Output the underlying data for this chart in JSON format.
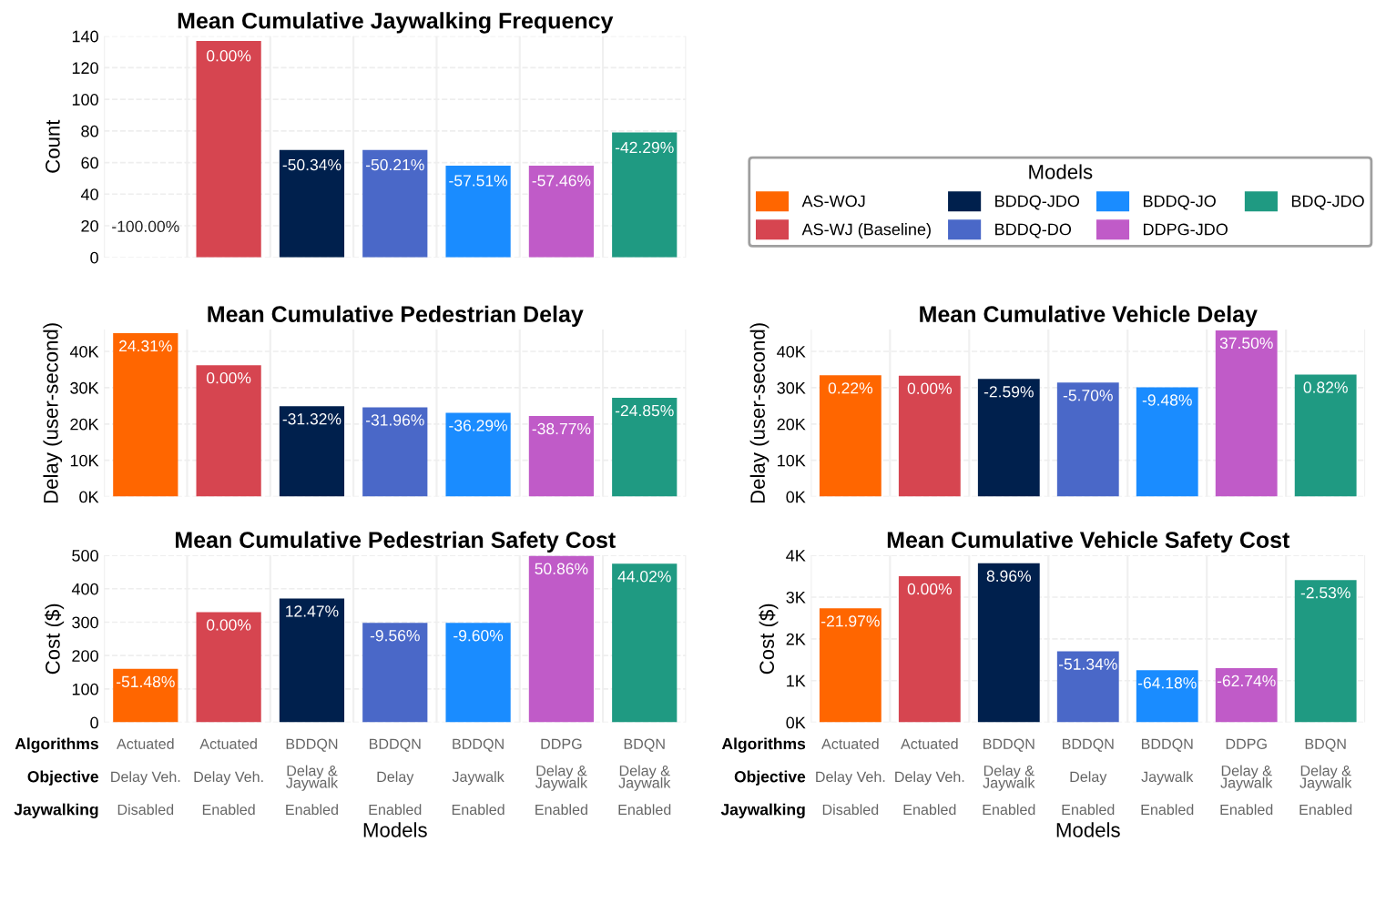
{
  "chart_data": [
    {
      "type": "bar",
      "title": "Mean Cumulative Jaywalking Frequency",
      "ylabel": "Count",
      "categories": [
        null,
        null,
        null,
        null,
        null,
        null,
        null
      ],
      "values": [
        0,
        137,
        68,
        68,
        58,
        58,
        79
      ],
      "colors": [
        "#ff6600",
        "#d64550",
        "#00204d",
        "#4a68c8",
        "#1a8cff",
        "#c05bc8",
        "#1f9a82"
      ],
      "annotations": [
        "-100.00%",
        "0.00%",
        "-50.34%",
        "-50.21%",
        "-57.51%",
        "-57.46%",
        "-42.29%"
      ],
      "ylim": [
        0,
        140
      ],
      "yticks": [
        0,
        20,
        40,
        60,
        80,
        100,
        120,
        140
      ],
      "grid": true
    },
    {
      "type": "bar",
      "title": "Mean Cumulative Pedestrian Delay",
      "ylabel": "Delay (user-second)",
      "categories": [
        null,
        null,
        null,
        null,
        null,
        null,
        null
      ],
      "values": [
        45000,
        36200,
        24900,
        24600,
        23100,
        22200,
        27200
      ],
      "colors": [
        "#ff6600",
        "#d64550",
        "#00204d",
        "#4a68c8",
        "#1a8cff",
        "#c05bc8",
        "#1f9a82"
      ],
      "annotations": [
        "24.31%",
        "0.00%",
        "-31.32%",
        "-31.96%",
        "-36.29%",
        "-38.77%",
        "-24.85%"
      ],
      "ylim": [
        0,
        46000
      ],
      "yticks": [
        {
          "value": 0,
          "label": "0K"
        },
        {
          "value": 10000,
          "label": "10K"
        },
        {
          "value": 20000,
          "label": "20K"
        },
        {
          "value": 30000,
          "label": "30K"
        },
        {
          "value": 40000,
          "label": "40K"
        }
      ],
      "grid": true
    },
    {
      "type": "bar",
      "title": "Mean Cumulative Vehicle Delay",
      "ylabel": "Delay (user-second)",
      "legend_title": "Models",
      "legend": "top",
      "categories": [
        null,
        null,
        null,
        null,
        null,
        null,
        null
      ],
      "series": [
        {
          "name": "AS-WOJ",
          "color": "#ff6600",
          "values": [
            33400,
            null,
            null,
            null,
            null,
            null,
            null
          ]
        },
        {
          "name": "AS-WJ (Baseline)",
          "color": "#d64550",
          "values": [
            null,
            33300,
            null,
            null,
            null,
            null,
            null
          ]
        },
        {
          "name": "BDDQ-JDO",
          "color": "#00204d",
          "values": [
            null,
            null,
            32400,
            null,
            null,
            null,
            null
          ]
        },
        {
          "name": "BDDQ-DO",
          "color": "#4a68c8",
          "values": [
            null,
            null,
            null,
            31400,
            null,
            null,
            null
          ]
        },
        {
          "name": "BDDQ-JO",
          "color": "#1a8cff",
          "values": [
            null,
            null,
            null,
            null,
            30100,
            null,
            null
          ]
        },
        {
          "name": "DDPG-JDO",
          "color": "#c05bc8",
          "values": [
            null,
            null,
            null,
            null,
            null,
            45800,
            null
          ]
        },
        {
          "name": "BDQ-JDO",
          "color": "#1f9a82",
          "values": [
            null,
            null,
            null,
            null,
            null,
            null,
            33600
          ]
        }
      ],
      "annotations": [
        "0.22%",
        "0.00%",
        "-2.59%",
        "-5.70%",
        "-9.48%",
        "37.50%",
        "0.82%"
      ],
      "ylim": [
        0,
        46000
      ],
      "yticks": [
        {
          "value": 0,
          "label": "0K"
        },
        {
          "value": 10000,
          "label": "10K"
        },
        {
          "value": 20000,
          "label": "20K"
        },
        {
          "value": 30000,
          "label": "30K"
        },
        {
          "value": 40000,
          "label": "40K"
        }
      ],
      "grid": true
    },
    {
      "type": "bar",
      "title": "Mean Cumulative Pedestrian Safety Cost",
      "ylabel": "Cost ($)",
      "xlabel": "Models",
      "categories": [
        null,
        null,
        null,
        null,
        null,
        null,
        null
      ],
      "values": [
        160,
        330,
        371,
        298,
        298,
        498,
        475
      ],
      "colors": [
        "#ff6600",
        "#d64550",
        "#00204d",
        "#4a68c8",
        "#1a8cff",
        "#c05bc8",
        "#1f9a82"
      ],
      "ylim": [
        0,
        500
      ],
      "yticks": [
        0,
        100,
        200,
        300,
        400,
        500
      ],
      "grid": true,
      "annotations": [
        "-51.48%",
        "0.00%",
        "12.47%",
        "-9.56%",
        "-9.60%",
        "50.86%",
        "44.02%",
        "Algorithms",
        "Objective",
        "Jaywalking",
        "Actuated",
        "Actuated",
        "BDDQN",
        "BDDQN",
        "BDDQN",
        "DDPG",
        "BDQN",
        "Delay Veh.",
        "Delay Veh.",
        "Delay &\nJaywalk",
        "Delay",
        "Jaywalk",
        "Delay &\nJaywalk",
        "Delay &\nJaywalk",
        "Disabled",
        "Enabled",
        "Enabled",
        "Enabled",
        "Enabled",
        "Enabled",
        "Enabled"
      ]
    },
    {
      "type": "bar",
      "title": "Mean Cumulative Vehicle Safety Cost",
      "ylabel": "Cost ($)",
      "xlabel": "Models",
      "categories": [
        null,
        null,
        null,
        null,
        null,
        null,
        null
      ],
      "values": [
        2730,
        3500,
        3810,
        1700,
        1250,
        1300,
        3410
      ],
      "colors": [
        "#ff6600",
        "#d64550",
        "#00204d",
        "#4a68c8",
        "#1a8cff",
        "#c05bc8",
        "#1f9a82"
      ],
      "ylim": [
        0,
        4000
      ],
      "yticks": [
        {
          "value": 0,
          "label": "0K"
        },
        {
          "value": 1000,
          "label": "1K"
        },
        {
          "value": 2000,
          "label": "2K"
        },
        {
          "value": 3000,
          "label": "3K"
        },
        {
          "value": 4000,
          "label": "4K"
        }
      ],
      "grid": true,
      "annotations": [
        "-21.97%",
        "0.00%",
        "8.96%",
        "-51.34%",
        "-64.18%",
        "-62.74%",
        "-2.53%",
        "Algorithms",
        "Objective",
        "Jaywalking",
        "Actuated",
        "Actuated",
        "BDDQN",
        "BDDQN",
        "BDDQN",
        "DDPG",
        "BDQN",
        "Delay Veh.",
        "Delay Veh.",
        "Delay &\nJaywalk",
        "Delay",
        "Jaywalk",
        "Delay &\nJaywalk",
        "Delay &\nJaywalk",
        "Disabled",
        "Enabled",
        "Enabled",
        "Enabled",
        "Enabled",
        "Enabled",
        "Enabled"
      ]
    }
  ]
}
